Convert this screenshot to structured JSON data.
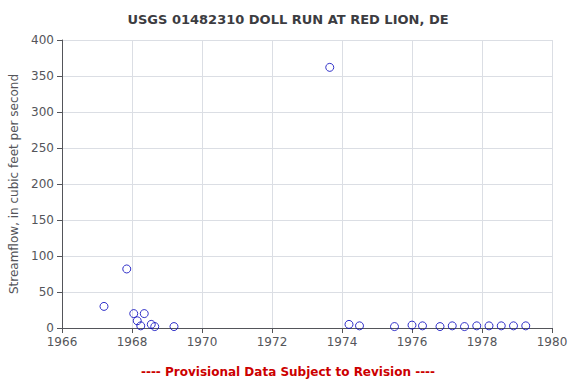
{
  "chart_data": {
    "type": "scatter",
    "title": "USGS 01482310 DOLL RUN AT RED LION, DE",
    "ylabel": "Streamflow, in cubic feet per second",
    "annotations": [
      {
        "text": "---- Provisional Data Subject to Revision ----",
        "color": "#cc0000"
      }
    ],
    "x": [
      1967.2,
      1967.85,
      1968.05,
      1968.15,
      1968.25,
      1968.35,
      1968.55,
      1968.65,
      1969.2,
      1973.65,
      1974.2,
      1974.5,
      1975.5,
      1976.0,
      1976.3,
      1976.8,
      1977.15,
      1977.5,
      1977.85,
      1978.2,
      1978.55,
      1978.9,
      1979.25
    ],
    "values": [
      30,
      82,
      20,
      10,
      3,
      20,
      5,
      2,
      2,
      362,
      5,
      3,
      2,
      4,
      3,
      2,
      3,
      2,
      3,
      3,
      3,
      3,
      3
    ],
    "color": "#0000bb",
    "marker": "circle",
    "xlim": [
      1966,
      1980
    ],
    "ylim": [
      0,
      400
    ],
    "xticks": [
      1966,
      1968,
      1970,
      1972,
      1974,
      1976,
      1978,
      1980
    ],
    "yticks": [
      0,
      50,
      100,
      150,
      200,
      250,
      300,
      350,
      400
    ],
    "grid": true
  }
}
